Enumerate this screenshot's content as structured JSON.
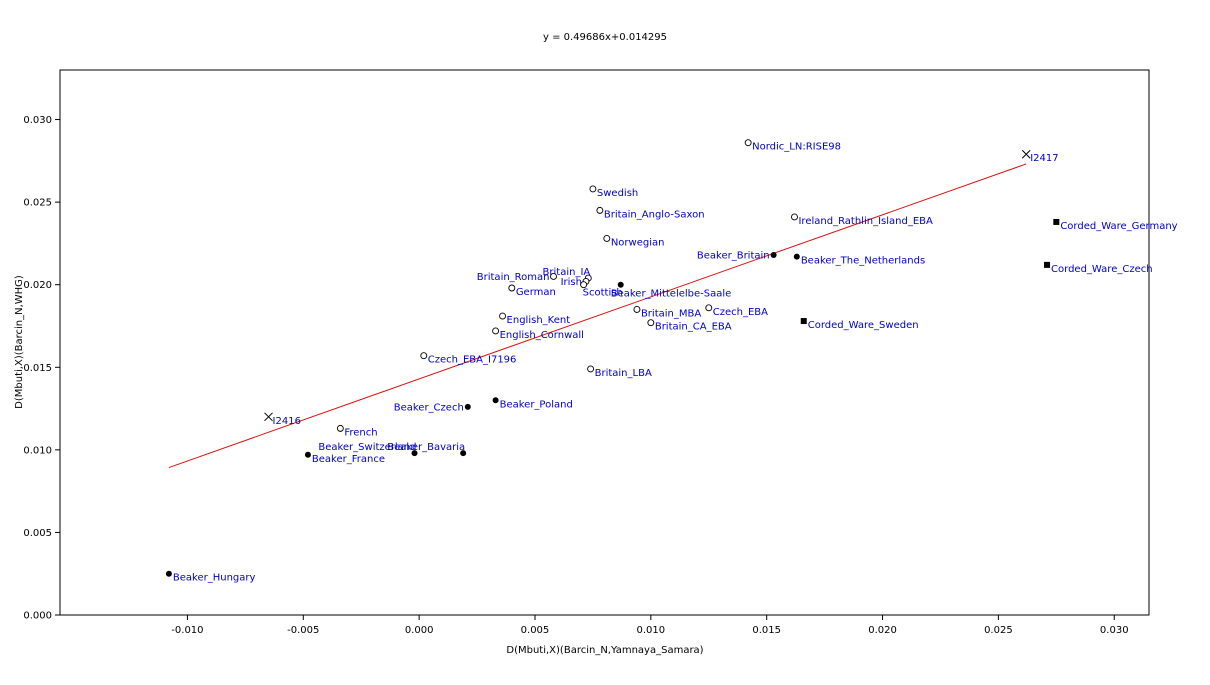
{
  "chart_data": {
    "type": "scatter",
    "title": "y = 0.49686x+0.014295",
    "xlabel": "D(Mbuti,X)(Barcin_N,Yamnaya_Samara)",
    "ylabel": "D(Mbuti,X)(Barcin_N,WHG)",
    "xlim": [
      -0.0155,
      0.0315
    ],
    "ylim": [
      0.0,
      0.033
    ],
    "x_ticks": [
      "-0.010",
      "-0.005",
      "0.000",
      "0.005",
      "0.010",
      "0.015",
      "0.020",
      "0.025",
      "0.030"
    ],
    "x_tick_values": [
      -0.01,
      -0.005,
      0.0,
      0.005,
      0.01,
      0.015,
      0.02,
      0.025,
      0.03
    ],
    "y_ticks": [
      "0.000",
      "0.005",
      "0.010",
      "0.015",
      "0.020",
      "0.025",
      "0.030"
    ],
    "y_tick_values": [
      0.0,
      0.005,
      0.01,
      0.015,
      0.02,
      0.025,
      0.03
    ],
    "grid": false,
    "regression": {
      "slope": 0.49686,
      "intercept": 0.014295,
      "x_range": [
        -0.0108,
        0.0262
      ],
      "color": "#e01010"
    },
    "points": [
      {
        "label": "Nordic_LN:RISE98",
        "x": 0.0142,
        "y": 0.0286,
        "marker": "circle-open"
      },
      {
        "label": "I2417",
        "x": 0.0262,
        "y": 0.0279,
        "marker": "cross"
      },
      {
        "label": "Swedish",
        "x": 0.0075,
        "y": 0.0258,
        "marker": "circle-open"
      },
      {
        "label": "Britain_Anglo-Saxon",
        "x": 0.0078,
        "y": 0.0245,
        "marker": "circle-open"
      },
      {
        "label": "Ireland_Rathlin_Island_EBA",
        "x": 0.0162,
        "y": 0.0241,
        "marker": "circle-open"
      },
      {
        "label": "Corded_Ware_Germany",
        "x": 0.0275,
        "y": 0.0238,
        "marker": "square"
      },
      {
        "label": "Norwegian",
        "x": 0.0081,
        "y": 0.0228,
        "marker": "circle-open"
      },
      {
        "label": "Beaker_Britain",
        "x": 0.0153,
        "y": 0.0218,
        "marker": "dot",
        "label_side": "left"
      },
      {
        "label": "Beaker_The_Netherlands",
        "x": 0.0163,
        "y": 0.0217,
        "marker": "dot"
      },
      {
        "label": "Corded_Ware_Czech",
        "x": 0.0271,
        "y": 0.0212,
        "marker": "square"
      },
      {
        "label": "Britain_IA",
        "x": 0.0073,
        "y": 0.0204,
        "marker": "circle-open",
        "label_side": "above-left"
      },
      {
        "label": "Britain_Roman",
        "x": 0.0058,
        "y": 0.0205,
        "marker": "circle-open",
        "label_side": "left"
      },
      {
        "label": "Irish",
        "x": 0.0072,
        "y": 0.0202,
        "marker": "circle-open",
        "label_side": "left"
      },
      {
        "label": "Scottish",
        "x": 0.0071,
        "y": 0.02,
        "marker": "circle-open",
        "label_side": "below-right"
      },
      {
        "label": "Beaker_Mittelelbe-Saale",
        "x": 0.0087,
        "y": 0.02,
        "marker": "dot",
        "label_side": "below"
      },
      {
        "label": "German",
        "x": 0.004,
        "y": 0.0198,
        "marker": "circle-open"
      },
      {
        "label": "Czech_EBA",
        "x": 0.0125,
        "y": 0.0186,
        "marker": "circle-open"
      },
      {
        "label": "Britain_MBA",
        "x": 0.0094,
        "y": 0.0185,
        "marker": "circle-open"
      },
      {
        "label": "English_Kent",
        "x": 0.0036,
        "y": 0.0181,
        "marker": "circle-open"
      },
      {
        "label": "Corded_Ware_Sweden",
        "x": 0.0166,
        "y": 0.0178,
        "marker": "square"
      },
      {
        "label": "Britain_CA_EBA",
        "x": 0.01,
        "y": 0.0177,
        "marker": "circle-open"
      },
      {
        "label": "English_Cornwall",
        "x": 0.0033,
        "y": 0.0172,
        "marker": "circle-open"
      },
      {
        "label": "Czech_EBA_I7196",
        "x": 0.0002,
        "y": 0.0157,
        "marker": "circle-open"
      },
      {
        "label": "Britain_LBA",
        "x": 0.0074,
        "y": 0.0149,
        "marker": "circle-open"
      },
      {
        "label": "Beaker_Poland",
        "x": 0.0033,
        "y": 0.013,
        "marker": "dot"
      },
      {
        "label": "Beaker_Czech",
        "x": 0.0021,
        "y": 0.0126,
        "marker": "dot",
        "label_side": "left"
      },
      {
        "label": "I2416",
        "x": -0.0065,
        "y": 0.012,
        "marker": "cross"
      },
      {
        "label": "French",
        "x": -0.0034,
        "y": 0.0113,
        "marker": "circle-open"
      },
      {
        "label": "Beaker_Switzerland",
        "x": -0.0002,
        "y": 0.0098,
        "marker": "dot",
        "label_side": "above-left"
      },
      {
        "label": "Beaker_Bavaria",
        "x": 0.0019,
        "y": 0.0098,
        "marker": "dot",
        "label_side": "above-left"
      },
      {
        "label": "Beaker_France",
        "x": -0.0048,
        "y": 0.0097,
        "marker": "dot"
      },
      {
        "label": "Beaker_Hungary",
        "x": -0.0108,
        "y": 0.0025,
        "marker": "dot"
      }
    ]
  }
}
